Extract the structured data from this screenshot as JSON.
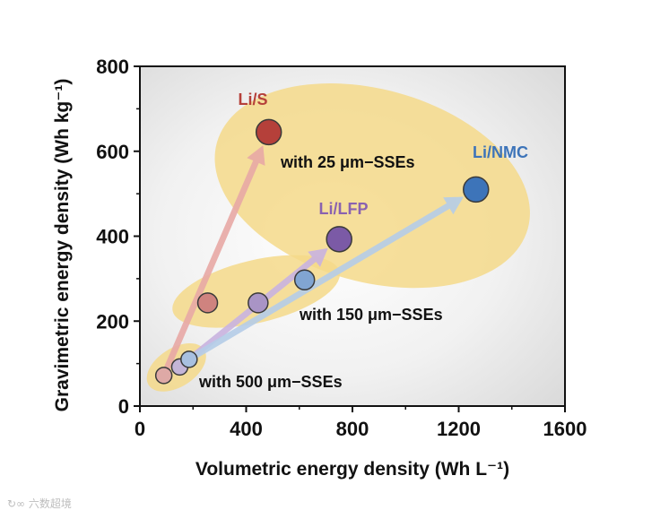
{
  "chart_data": {
    "type": "scatter",
    "xlabel": "Volumetric energy density (Wh L⁻¹)",
    "ylabel": "Gravimetric energy density (Wh kg⁻¹)",
    "xlim": [
      0,
      1600
    ],
    "ylim": [
      0,
      800
    ],
    "x_ticks": [
      "0",
      "400",
      "800",
      "1200",
      "1600"
    ],
    "y_ticks": [
      "0",
      "200",
      "400",
      "600",
      "800"
    ],
    "grid": false,
    "series": [
      {
        "name": "Li/S",
        "color": "#b5403a",
        "label_color": "#b5403a",
        "arrow_color": "#e8a9a6",
        "points": [
          {
            "x": 90,
            "y": 72,
            "group": "500"
          },
          {
            "x": 255,
            "y": 243,
            "group": "150"
          },
          {
            "x": 485,
            "y": 645,
            "group": "25"
          }
        ]
      },
      {
        "name": "Li/LFP",
        "color": "#7b5aa6",
        "label_color": "#8a62b0",
        "arrow_color": "#c9b3e0",
        "points": [
          {
            "x": 150,
            "y": 92,
            "group": "500"
          },
          {
            "x": 445,
            "y": 243,
            "group": "150"
          },
          {
            "x": 750,
            "y": 393,
            "group": "25"
          }
        ]
      },
      {
        "name": "Li/NMC",
        "color": "#3d74b9",
        "label_color": "#3d74b9",
        "arrow_color": "#b5cde8",
        "points": [
          {
            "x": 185,
            "y": 110,
            "group": "500"
          },
          {
            "x": 620,
            "y": 297,
            "group": "150"
          },
          {
            "x": 1265,
            "y": 510,
            "group": "25"
          }
        ]
      }
    ],
    "groups": [
      {
        "key": "500",
        "label": "with 500 μm−SSEs"
      },
      {
        "key": "150",
        "label": "with 150 μm−SSEs"
      },
      {
        "key": "25",
        "label": "with 25 μm−SSEs"
      }
    ],
    "colors": {
      "ellipse_fill": "#f5d98a",
      "axis": "#111111"
    }
  },
  "watermark": "六数超境"
}
